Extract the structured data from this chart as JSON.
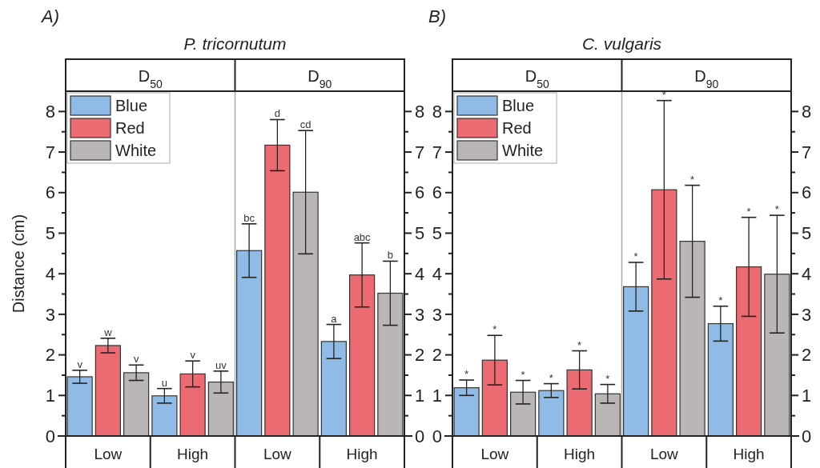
{
  "chart_data": [
    {
      "type": "bar",
      "title": "P. tricornutum",
      "ylabel": "Distance (cm)",
      "annotations": [
        "A)",
        "D$_{50}$",
        "D$_{90}$",
        "v",
        "w",
        "v",
        "u",
        "v",
        "uv",
        "bc",
        "d",
        "cd",
        "a",
        "abc",
        "b"
      ],
      "categories": [
        "Low",
        "High",
        "Low",
        "High"
      ],
      "series": [
        {
          "name": "Blue",
          "color": "#8fbbe6",
          "values": [
            1.46,
            0.99,
            4.57,
            2.33
          ],
          "errors": [
            0.16,
            0.18,
            0.66,
            0.42
          ]
        },
        {
          "name": "Red",
          "color": "#ec6b72",
          "values": [
            2.23,
            1.53,
            7.17,
            3.97
          ],
          "errors": [
            0.18,
            0.32,
            0.63,
            0.79
          ]
        },
        {
          "name": "White",
          "color": "#bab6b5",
          "values": [
            1.56,
            1.33,
            6.01,
            3.52
          ],
          "errors": [
            0.19,
            0.27,
            1.52,
            0.79
          ]
        }
      ],
      "ylim": [
        0,
        8.5
      ],
      "yticks": [
        0,
        {
          "value": 0.5,
          "label": null
        },
        1,
        {
          "value": 1.5,
          "label": null
        },
        2,
        {
          "value": 2.5,
          "label": null
        },
        3,
        {
          "value": 3.5,
          "label": null
        },
        4,
        {
          "value": 4.5,
          "label": null
        },
        5,
        {
          "value": 5.5,
          "label": null
        },
        6,
        {
          "value": 6.5,
          "label": null
        },
        7,
        {
          "value": 7.5,
          "label": null
        },
        8
      ],
      "y2lim": [
        0,
        8.5
      ],
      "y2ticks": [
        0,
        {
          "value": 0.5,
          "label": null
        },
        1,
        {
          "value": 1.5,
          "label": null
        },
        2,
        {
          "value": 2.5,
          "label": null
        },
        3,
        {
          "value": 3.5,
          "label": null
        },
        4,
        {
          "value": 4.5,
          "label": null
        },
        5,
        {
          "value": 5.5,
          "label": null
        },
        6,
        {
          "value": 6.5,
          "label": null
        },
        7,
        {
          "value": 7.5,
          "label": null
        },
        8
      ],
      "legend": "top left",
      "grid": false
    },
    {
      "type": "bar",
      "title": "C. vulgaris",
      "annotations": [
        "B)",
        "D$_{50}$",
        "D$_{90}$",
        "*",
        "*",
        "*",
        "*",
        "*",
        "*",
        "*",
        "*",
        "*",
        "*",
        "*",
        "*"
      ],
      "categories": [
        "Low",
        "High",
        "Low",
        "High"
      ],
      "series": [
        {
          "name": "Blue",
          "color": "#8fbbe6",
          "values": [
            1.19,
            1.12,
            3.68,
            2.77
          ],
          "errors": [
            0.19,
            0.17,
            0.6,
            0.43
          ]
        },
        {
          "name": "Red",
          "color": "#ec6b72",
          "values": [
            1.87,
            1.63,
            6.07,
            4.17
          ],
          "errors": [
            0.61,
            0.47,
            2.2,
            1.22
          ]
        },
        {
          "name": "White",
          "color": "#bab6b5",
          "values": [
            1.08,
            1.04,
            4.8,
            3.99
          ],
          "errors": [
            0.29,
            0.23,
            1.38,
            1.45
          ]
        }
      ],
      "ylim": [
        0,
        8.5
      ],
      "yticks": [
        0,
        {
          "value": 0.5,
          "label": null
        },
        1,
        {
          "value": 1.5,
          "label": null
        },
        2,
        {
          "value": 2.5,
          "label": null
        },
        3,
        {
          "value": 3.5,
          "label": null
        },
        4,
        {
          "value": 4.5,
          "label": null
        },
        5,
        {
          "value": 5.5,
          "label": null
        },
        6,
        {
          "value": 6.5,
          "label": null
        },
        7,
        {
          "value": 7.5,
          "label": null
        },
        8
      ],
      "y2lim": [
        0,
        8.5
      ],
      "y2ticks": [
        0,
        {
          "value": 0.5,
          "label": null
        },
        1,
        {
          "value": 1.5,
          "label": null
        },
        2,
        {
          "value": 2.5,
          "label": null
        },
        3,
        {
          "value": 3.5,
          "label": null
        },
        4,
        {
          "value": 4.5,
          "label": null
        },
        5,
        {
          "value": 5.5,
          "label": null
        },
        6,
        {
          "value": 6.5,
          "label": null
        },
        7,
        {
          "value": 7.5,
          "label": null
        },
        8
      ],
      "legend": "top left",
      "grid": false
    }
  ]
}
